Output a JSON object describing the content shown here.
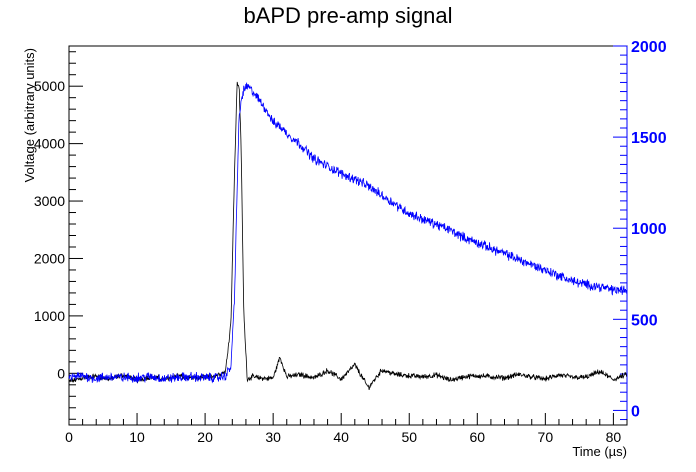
{
  "chart_data": {
    "type": "line",
    "title": "bAPD pre-amp signal",
    "xlabel": "Time (µs)",
    "ylabel": "Voltage (arbitrary units)",
    "xlim": [
      0,
      82
    ],
    "ylim": [
      -900,
      5700
    ],
    "y2lim": [
      -80,
      2000
    ],
    "xticks": [
      "0",
      "10",
      "20",
      "30",
      "40",
      "50",
      "60",
      "70",
      "80"
    ],
    "yticks": [
      "0",
      "1000",
      "2000",
      "3000",
      "4000",
      "5000"
    ],
    "y2ticks": [
      "0",
      "500",
      "1000",
      "1500",
      "2000"
    ],
    "grid": false,
    "right_axis_color": "#0000ff",
    "series": [
      {
        "color": "#000000",
        "axis": "left",
        "x": [
          0,
          2,
          4,
          6,
          8,
          10,
          12,
          14,
          16,
          18,
          20,
          21,
          22,
          23,
          23.8,
          24.3,
          24.7,
          25.0,
          25.3,
          25.7,
          26.2,
          27,
          28,
          29,
          30,
          31,
          32,
          34,
          36,
          38,
          40,
          42,
          44,
          46,
          48,
          50,
          52,
          54,
          56,
          58,
          60,
          62,
          64,
          66,
          68,
          70,
          72,
          74,
          76,
          78,
          80,
          82
        ],
        "y": [
          -150,
          -80,
          -50,
          -100,
          -30,
          -120,
          -60,
          -100,
          -40,
          -90,
          -60,
          -50,
          -20,
          30,
          900,
          3400,
          5050,
          5000,
          3900,
          1000,
          -100,
          -60,
          -80,
          -90,
          -80,
          280,
          -60,
          -20,
          -80,
          50,
          -100,
          150,
          -250,
          60,
          -20,
          -40,
          -60,
          -30,
          -120,
          -60,
          -40,
          -60,
          -80,
          -20,
          -60,
          -100,
          -30,
          -70,
          -70,
          30,
          -110,
          -20
        ]
      },
      {
        "color": "#0000ff",
        "axis": "right",
        "x": [
          0,
          2,
          4,
          6,
          8,
          10,
          12,
          14,
          16,
          18,
          20,
          21,
          22,
          23,
          23.8,
          24.3,
          24.7,
          25.0,
          25.3,
          25.7,
          26.2,
          27,
          28,
          29,
          30,
          31,
          32,
          34,
          36,
          38,
          40,
          42,
          44,
          46,
          48,
          50,
          52,
          54,
          56,
          58,
          60,
          62,
          64,
          66,
          68,
          70,
          72,
          74,
          76,
          78,
          80,
          82
        ],
        "y": [
          180,
          190,
          175,
          185,
          180,
          180,
          185,
          175,
          180,
          185,
          180,
          180,
          180,
          190,
          240,
          600,
          1200,
          1600,
          1700,
          1760,
          1780,
          1750,
          1700,
          1650,
          1580,
          1560,
          1520,
          1460,
          1380,
          1340,
          1300,
          1270,
          1230,
          1180,
          1130,
          1080,
          1050,
          1020,
          990,
          950,
          920,
          890,
          860,
          830,
          800,
          770,
          740,
          710,
          690,
          680,
          660,
          660
        ]
      }
    ]
  }
}
